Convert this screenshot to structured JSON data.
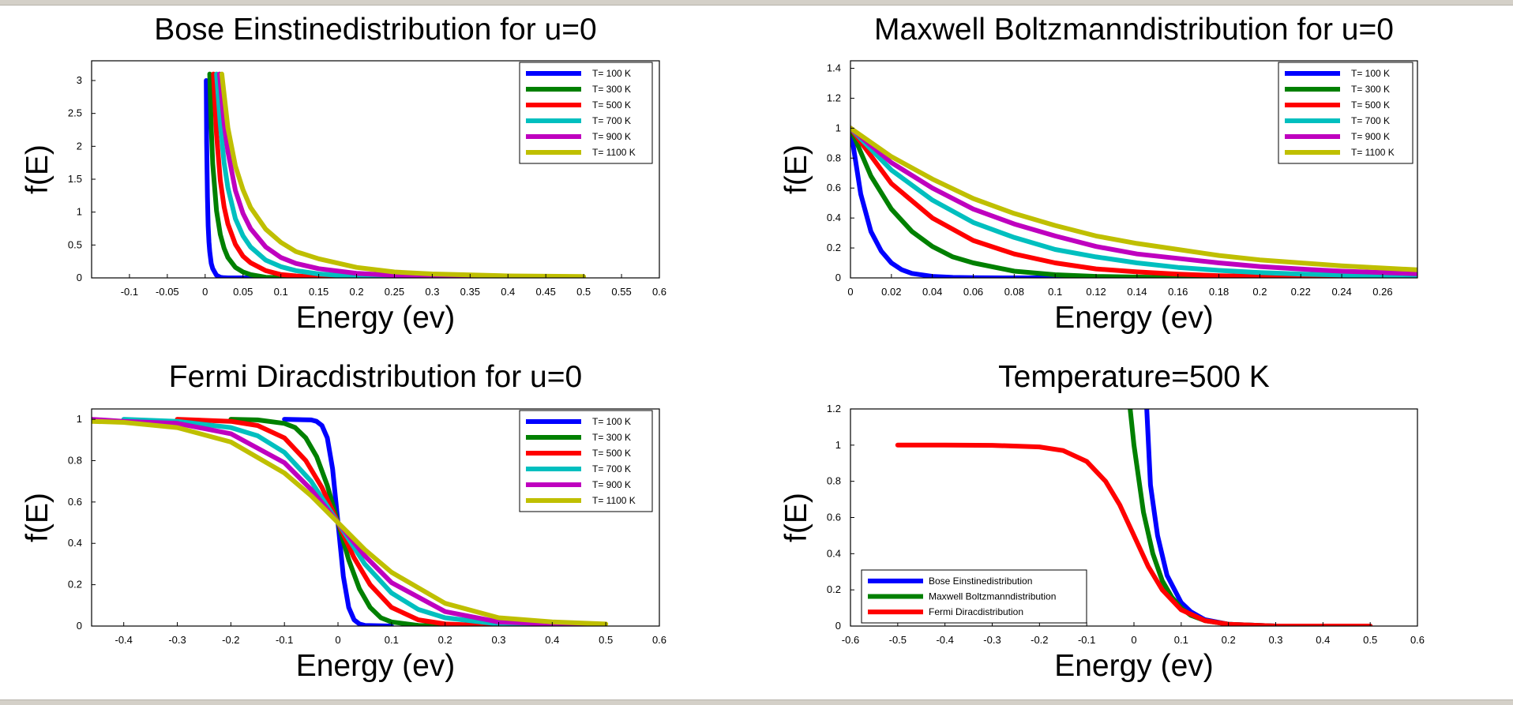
{
  "window": {
    "kind": "graphics figure"
  },
  "colors": {
    "blue": "#0000ff",
    "green": "#008000",
    "red": "#ff0000",
    "cyan": "#00bfbf",
    "magenta": "#bf00bf",
    "olive": "#bfbf00",
    "axis": "#000000",
    "background": "#ffffff",
    "frame": "#d4d0c8"
  },
  "chart_data": [
    {
      "type": "line",
      "title": "Bose Einstinedistribution for u=0",
      "xlabel": "Energy (ev)",
      "ylabel": "f(E)",
      "xlim": [
        -0.15,
        0.6
      ],
      "ylim": [
        0,
        3.3
      ],
      "xticks": [
        -0.1,
        -0.05,
        0,
        0.05,
        0.1,
        0.15,
        0.2,
        0.25,
        0.3,
        0.35,
        0.4,
        0.45,
        0.5,
        0.55,
        0.6
      ],
      "xtick_labels": [
        "-0.1",
        "-0.05",
        "0",
        "0.05",
        "0.1",
        "0.15",
        "0.2",
        "0.25",
        "0.3",
        "0.35",
        "0.4",
        "0.45",
        "0.5",
        "0.55",
        "0.6"
      ],
      "yticks": [
        0,
        0.5,
        1,
        1.5,
        2,
        2.5,
        3
      ],
      "ytick_labels": [
        "0",
        "0.5",
        "1",
        "1.5",
        "2",
        "2.5",
        "3"
      ],
      "legend": "top-right",
      "grid": false,
      "series": [
        {
          "name": "T= 100 K",
          "color": "blue",
          "x": [
            0.0015,
            0.002,
            0.003,
            0.004,
            0.005,
            0.006,
            0.008,
            0.01,
            0.015,
            0.02,
            0.025,
            0.03,
            0.04,
            0.05,
            0.07,
            0.1,
            0.15,
            0.2,
            0.3,
            0.4,
            0.5
          ],
          "y": [
            3.0,
            2.05,
            1.23,
            0.79,
            0.55,
            0.4,
            0.22,
            0.14,
            0.04,
            0.01,
            0.003,
            0.0,
            0,
            0,
            0,
            0,
            0,
            0,
            0,
            0,
            0
          ]
        },
        {
          "name": "T= 300 K",
          "color": "green",
          "x": [
            0.006,
            0.008,
            0.01,
            0.015,
            0.02,
            0.025,
            0.03,
            0.04,
            0.05,
            0.06,
            0.08,
            0.1,
            0.15,
            0.2,
            0.3,
            0.4,
            0.5
          ],
          "y": [
            3.1,
            2.28,
            1.73,
            1.02,
            0.66,
            0.45,
            0.31,
            0.16,
            0.09,
            0.05,
            0.01,
            0.005,
            0.0,
            0,
            0,
            0,
            0
          ],
          "y_start": "max"
        },
        {
          "name": "T= 500 K",
          "color": "red",
          "x": [
            0.011,
            0.015,
            0.02,
            0.025,
            0.03,
            0.04,
            0.05,
            0.06,
            0.08,
            0.1,
            0.12,
            0.15,
            0.2,
            0.25,
            0.3,
            0.4,
            0.5
          ],
          "y": [
            3.1,
            2.18,
            1.48,
            1.08,
            0.82,
            0.51,
            0.33,
            0.23,
            0.11,
            0.05,
            0.03,
            0.01,
            0.0,
            0,
            0,
            0,
            0
          ]
        },
        {
          "name": "T= 700 K",
          "color": "cyan",
          "x": [
            0.015,
            0.02,
            0.025,
            0.03,
            0.04,
            0.05,
            0.06,
            0.08,
            0.1,
            0.12,
            0.15,
            0.2,
            0.25,
            0.3,
            0.4,
            0.5
          ],
          "y": [
            3.1,
            2.33,
            1.75,
            1.37,
            0.9,
            0.64,
            0.47,
            0.27,
            0.17,
            0.11,
            0.06,
            0.02,
            0.01,
            0.0,
            0,
            0
          ]
        },
        {
          "name": "T= 900 K",
          "color": "magenta",
          "x": [
            0.019,
            0.025,
            0.03,
            0.04,
            0.05,
            0.06,
            0.08,
            0.1,
            0.12,
            0.15,
            0.2,
            0.25,
            0.3,
            0.4,
            0.5
          ],
          "y": [
            3.1,
            2.35,
            1.92,
            1.33,
            0.98,
            0.75,
            0.47,
            0.31,
            0.22,
            0.14,
            0.07,
            0.04,
            0.02,
            0.01,
            0.0
          ]
        },
        {
          "name": "T= 1100 K",
          "color": "olive",
          "x": [
            0.022,
            0.03,
            0.04,
            0.05,
            0.06,
            0.08,
            0.1,
            0.12,
            0.15,
            0.2,
            0.25,
            0.3,
            0.4,
            0.5
          ],
          "y": [
            3.1,
            2.28,
            1.7,
            1.34,
            1.07,
            0.74,
            0.54,
            0.4,
            0.29,
            0.16,
            0.09,
            0.06,
            0.03,
            0.02
          ]
        }
      ]
    },
    {
      "type": "line",
      "title": "Maxwell Boltzmanndistribution for u=0",
      "xlabel": "Energy (ev)",
      "ylabel": "f(E)",
      "xlim": [
        0,
        0.277
      ],
      "ylim": [
        0,
        1.45
      ],
      "xticks": [
        0,
        0.02,
        0.04,
        0.06,
        0.08,
        0.1,
        0.12,
        0.14,
        0.16,
        0.18,
        0.2,
        0.22,
        0.24,
        0.26
      ],
      "xtick_labels": [
        "0",
        "0.02",
        "0.04",
        "0.06",
        "0.08",
        "0.1",
        "0.12",
        "0.14",
        "0.16",
        "0.18",
        "0.2",
        "0.22",
        "0.24",
        "0.26"
      ],
      "yticks": [
        0,
        0.2,
        0.4,
        0.6,
        0.8,
        1,
        1.2,
        1.4
      ],
      "ytick_labels": [
        "0",
        "0.2",
        "0.4",
        "0.6",
        "0.8",
        "1",
        "1.2",
        "1.4"
      ],
      "legend": "top-right",
      "grid": false,
      "series": [
        {
          "name": "T= 100 K",
          "color": "blue",
          "x": [
            0,
            0.005,
            0.01,
            0.015,
            0.02,
            0.025,
            0.03,
            0.04,
            0.05,
            0.06,
            0.08,
            0.1,
            0.15,
            0.2,
            0.277
          ],
          "y": [
            1,
            0.56,
            0.31,
            0.18,
            0.1,
            0.055,
            0.03,
            0.01,
            0.003,
            0.001,
            0,
            0,
            0,
            0,
            0
          ]
        },
        {
          "name": "T= 300 K",
          "color": "green",
          "x": [
            0,
            0.01,
            0.02,
            0.03,
            0.04,
            0.05,
            0.06,
            0.08,
            0.1,
            0.12,
            0.15,
            0.2,
            0.277
          ],
          "y": [
            1,
            0.68,
            0.46,
            0.31,
            0.21,
            0.14,
            0.1,
            0.045,
            0.021,
            0.01,
            0.003,
            0.0,
            0
          ]
        },
        {
          "name": "T= 500 K",
          "color": "red",
          "x": [
            0,
            0.02,
            0.04,
            0.06,
            0.08,
            0.1,
            0.12,
            0.14,
            0.16,
            0.18,
            0.2,
            0.22,
            0.24,
            0.277
          ],
          "y": [
            1,
            0.63,
            0.4,
            0.25,
            0.16,
            0.1,
            0.06,
            0.04,
            0.025,
            0.015,
            0.01,
            0.006,
            0.004,
            0.002
          ]
        },
        {
          "name": "T= 700 K",
          "color": "cyan",
          "x": [
            0,
            0.02,
            0.04,
            0.06,
            0.08,
            0.1,
            0.12,
            0.14,
            0.16,
            0.18,
            0.2,
            0.22,
            0.24,
            0.277
          ],
          "y": [
            1,
            0.72,
            0.52,
            0.37,
            0.27,
            0.19,
            0.14,
            0.1,
            0.07,
            0.05,
            0.036,
            0.026,
            0.019,
            0.01
          ]
        },
        {
          "name": "T= 900 K",
          "color": "magenta",
          "x": [
            0,
            0.02,
            0.04,
            0.06,
            0.08,
            0.1,
            0.12,
            0.14,
            0.16,
            0.18,
            0.2,
            0.22,
            0.24,
            0.277
          ],
          "y": [
            1,
            0.77,
            0.6,
            0.46,
            0.36,
            0.28,
            0.21,
            0.16,
            0.13,
            0.1,
            0.076,
            0.059,
            0.045,
            0.028
          ]
        },
        {
          "name": "T= 1100 K",
          "color": "olive",
          "x": [
            0,
            0.02,
            0.04,
            0.06,
            0.08,
            0.1,
            0.12,
            0.14,
            0.16,
            0.18,
            0.2,
            0.22,
            0.24,
            0.277
          ],
          "y": [
            1,
            0.81,
            0.66,
            0.53,
            0.43,
            0.35,
            0.28,
            0.23,
            0.19,
            0.15,
            0.12,
            0.1,
            0.08,
            0.054
          ]
        }
      ]
    },
    {
      "type": "line",
      "title": "Fermi Diracdistribution for u=0",
      "xlabel": "Energy (ev)",
      "ylabel": "f(E)",
      "xlim": [
        -0.46,
        0.6
      ],
      "ylim": [
        0,
        1.05
      ],
      "xticks": [
        -0.4,
        -0.3,
        -0.2,
        -0.1,
        0,
        0.1,
        0.2,
        0.3,
        0.4,
        0.5,
        0.6
      ],
      "xtick_labels": [
        "-0.4",
        "-0.3",
        "-0.2",
        "-0.1",
        "0",
        "0.1",
        "0.2",
        "0.3",
        "0.4",
        "0.5",
        "0.6"
      ],
      "yticks": [
        0,
        0.2,
        0.4,
        0.6,
        0.8,
        1
      ],
      "ytick_labels": [
        "0",
        "0.2",
        "0.4",
        "0.6",
        "0.8",
        "1"
      ],
      "legend": "top-right",
      "grid": false,
      "series": [
        {
          "name": "T= 100 K",
          "color": "blue",
          "x": [
            -0.1,
            -0.05,
            -0.04,
            -0.03,
            -0.02,
            -0.01,
            0,
            0.01,
            0.02,
            0.03,
            0.04,
            0.05,
            0.1
          ],
          "y": [
            1,
            0.997,
            0.99,
            0.97,
            0.91,
            0.76,
            0.5,
            0.24,
            0.09,
            0.03,
            0.01,
            0.003,
            0
          ]
        },
        {
          "name": "T= 300 K",
          "color": "green",
          "x": [
            -0.2,
            -0.15,
            -0.1,
            -0.08,
            -0.06,
            -0.04,
            -0.02,
            0,
            0.02,
            0.04,
            0.06,
            0.08,
            0.1,
            0.15,
            0.2
          ],
          "y": [
            1,
            0.997,
            0.98,
            0.96,
            0.91,
            0.82,
            0.68,
            0.5,
            0.32,
            0.18,
            0.09,
            0.04,
            0.02,
            0.003,
            0
          ]
        },
        {
          "name": "T= 500 K",
          "color": "red",
          "x": [
            -0.3,
            -0.2,
            -0.15,
            -0.1,
            -0.06,
            -0.03,
            0,
            0.03,
            0.06,
            0.1,
            0.15,
            0.2,
            0.3
          ],
          "y": [
            1,
            0.99,
            0.97,
            0.91,
            0.8,
            0.67,
            0.5,
            0.33,
            0.2,
            0.09,
            0.03,
            0.01,
            0
          ]
        },
        {
          "name": "T= 700 K",
          "color": "cyan",
          "x": [
            -0.4,
            -0.3,
            -0.2,
            -0.15,
            -0.1,
            -0.05,
            0,
            0.05,
            0.1,
            0.15,
            0.2,
            0.3,
            0.4
          ],
          "y": [
            1,
            0.99,
            0.96,
            0.92,
            0.84,
            0.7,
            0.5,
            0.3,
            0.16,
            0.08,
            0.04,
            0.01,
            0
          ]
        },
        {
          "name": "T= 900 K",
          "color": "magenta",
          "x": [
            -0.46,
            -0.4,
            -0.3,
            -0.2,
            -0.1,
            -0.05,
            0,
            0.05,
            0.1,
            0.2,
            0.3,
            0.4,
            0.46
          ],
          "y": [
            1,
            0.99,
            0.98,
            0.93,
            0.79,
            0.66,
            0.5,
            0.34,
            0.21,
            0.07,
            0.02,
            0.01,
            0.003
          ]
        },
        {
          "name": "T= 1100 K",
          "color": "olive",
          "x": [
            -0.46,
            -0.4,
            -0.3,
            -0.2,
            -0.1,
            -0.05,
            0,
            0.05,
            0.1,
            0.2,
            0.3,
            0.4,
            0.5
          ],
          "y": [
            0.99,
            0.985,
            0.96,
            0.89,
            0.74,
            0.63,
            0.5,
            0.37,
            0.26,
            0.11,
            0.04,
            0.02,
            0.01
          ]
        }
      ]
    },
    {
      "type": "line",
      "title": "Temperature=500 K",
      "xlabel": "Energy (ev)",
      "ylabel": "f(E)",
      "xlim": [
        -0.6,
        0.6
      ],
      "ylim": [
        0,
        1.2
      ],
      "xticks": [
        -0.6,
        -0.5,
        -0.4,
        -0.3,
        -0.2,
        -0.1,
        0,
        0.1,
        0.2,
        0.3,
        0.4,
        0.5,
        0.6
      ],
      "xtick_labels": [
        "-0.6",
        "-0.5",
        "-0.4",
        "-0.3",
        "-0.2",
        "-0.1",
        "0",
        "0.1",
        "0.2",
        "0.3",
        "0.4",
        "0.5",
        "0.6"
      ],
      "yticks": [
        0,
        0.2,
        0.4,
        0.6,
        0.8,
        1,
        1.2
      ],
      "ytick_labels": [
        "0",
        "0.2",
        "0.4",
        "0.6",
        "0.8",
        "1",
        "1.2"
      ],
      "legend": "bottom-left",
      "grid": false,
      "series": [
        {
          "name": "Bose Einstinedistribution",
          "color": "blue",
          "x": [
            0.027,
            0.035,
            0.05,
            0.07,
            0.1,
            0.12,
            0.15,
            0.2,
            0.3,
            0.4,
            0.5
          ],
          "y": [
            1.2,
            0.78,
            0.5,
            0.28,
            0.13,
            0.08,
            0.035,
            0.01,
            0,
            0,
            0
          ]
        },
        {
          "name": "Maxwell Boltzmanndistribution",
          "color": "green",
          "x": [
            -0.008,
            0,
            0.02,
            0.04,
            0.06,
            0.08,
            0.1,
            0.12,
            0.15,
            0.2,
            0.3,
            0.4,
            0.5
          ],
          "y": [
            1.2,
            1.0,
            0.63,
            0.4,
            0.25,
            0.16,
            0.1,
            0.06,
            0.03,
            0.01,
            0,
            0,
            0
          ]
        },
        {
          "name": "Fermi Diracdistribution",
          "color": "red",
          "x": [
            -0.5,
            -0.4,
            -0.3,
            -0.2,
            -0.15,
            -0.1,
            -0.06,
            -0.03,
            0,
            0.03,
            0.06,
            0.1,
            0.15,
            0.2,
            0.3,
            0.4,
            0.5
          ],
          "y": [
            1,
            1,
            0.999,
            0.99,
            0.97,
            0.91,
            0.8,
            0.67,
            0.5,
            0.33,
            0.2,
            0.09,
            0.03,
            0.01,
            0,
            0,
            0
          ]
        }
      ]
    }
  ]
}
